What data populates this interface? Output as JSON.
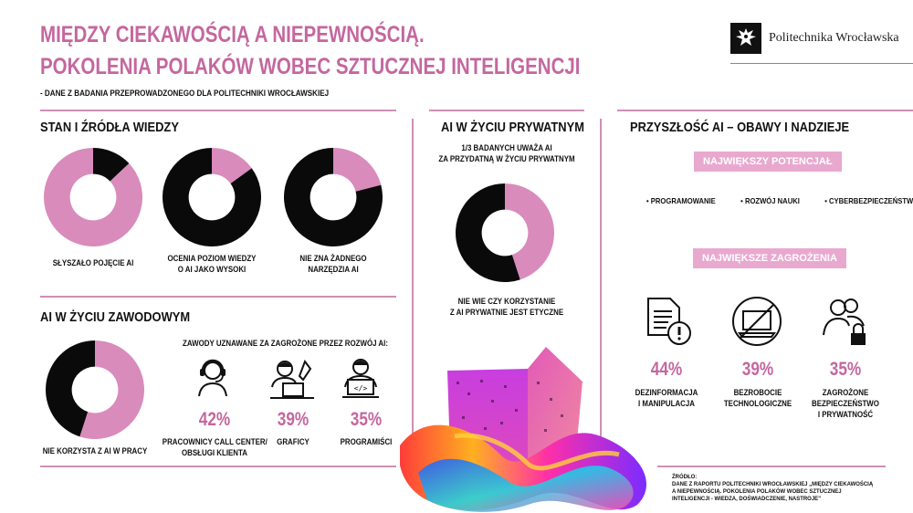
{
  "header": {
    "title_line1": "MIĘDZY CIEKAWOŚCIĄ A NIEPEWNOŚCIĄ.",
    "title_line2": "POKOLENIA POLAKÓW WOBEC SZTUCZNEJ INTELIGENCJI",
    "subtitle": "- DANE Z BADANIA PRZEPROWADZONEGO DLA POLITECHNIKI WROCŁAWSKIEJ",
    "logo_text": "Politechnika Wrocławska"
  },
  "colors": {
    "accent": "#c4679f",
    "donut_pink": "#d98bbc",
    "donut_black": "#0a0a0a",
    "pill": "#e9a9cf"
  },
  "knowledge": {
    "title": "STAN I ŹRÓDŁA WIEDZY",
    "donuts": [
      {
        "value": 87,
        "label": "87%",
        "caption_l1": "SŁYSZAŁO POJĘCIE AI",
        "caption_l2": ""
      },
      {
        "value": 15,
        "label": "15%",
        "caption_l1": "OCENIA POZIOM WIEDZY",
        "caption_l2": "O AI JAKO WYSOKI"
      },
      {
        "value": 21,
        "label": "21%",
        "caption_l1": "NIE ZNA ŻADNEGO",
        "caption_l2": "NARZĘDZIA AI"
      }
    ]
  },
  "work": {
    "title": "AI W ŻYCIU ZAWODOWYM",
    "donut": {
      "value": 55,
      "label": "55%",
      "caption": "NIE KORZYSTA Z AI W PRACY"
    },
    "jobs_header": "ZAWODY UZNAWANE ZA ZAGROŻONE PRZEZ ROZWÓJ AI:",
    "jobs": [
      {
        "icon": "headset-operator-icon",
        "pct": "42%",
        "label_l1": "PRACOWNICY CALL CENTER/",
        "label_l2": "OBSŁUGI KLIENTA"
      },
      {
        "icon": "graphic-designer-icon",
        "pct": "39%",
        "label_l1": "GRAFICY",
        "label_l2": ""
      },
      {
        "icon": "programmer-icon",
        "pct": "35%",
        "label_l1": "PROGRAMIŚCI",
        "label_l2": ""
      }
    ]
  },
  "private": {
    "title": "AI W ŻYCIU PRYWATNYM",
    "intro_l1": "1/3 BADANYCH UWAŻA AI",
    "intro_l2": "ZA PRZYDATNĄ W ŻYCIU PRYWATNYM",
    "donut": {
      "value": 45,
      "label": "45%"
    },
    "caption_l1": "NIE WIE CZY KORZYSTANIE",
    "caption_l2": "Z AI PRYWATNIE JEST ETYCZNE"
  },
  "future": {
    "title": "PRZYSZŁOŚĆ AI – OBAWY I NADZIEJE",
    "potential_label": "NAJWIĘKSZY POTENCJAŁ",
    "potential_items": [
      "PROGRAMOWANIE",
      "ROZWÓJ NAUKI",
      "CYBERBEZPIECZEŃSTWO"
    ],
    "threats_label": "NAJWIĘKSZE ZAGROŻENIA",
    "threats": [
      {
        "icon": "document-warning-icon",
        "pct": "44%",
        "label_l1": "DEZINFORMACJA",
        "label_l2": "I MANIPULACJA",
        "label_l3": ""
      },
      {
        "icon": "crossed-laptop-icon",
        "pct": "39%",
        "label_l1": "BEZROBOCIE",
        "label_l2": "TECHNOLOGICZNE",
        "label_l3": ""
      },
      {
        "icon": "people-lock-icon",
        "pct": "35%",
        "label_l1": "ZAGROŻONE",
        "label_l2": "BEZPIECZEŃSTWO",
        "label_l3": "I PRYWATNOŚĆ"
      }
    ]
  },
  "source": {
    "label": "ŹRÓDŁO:",
    "text": "DANE Z RAPORTU POLITECHNIKI WROCŁAWSKIEJ „MIĘDZY CIEKAWOŚCIĄ A NIEPEWNOŚCIĄ. POKOLENIA POLAKÓW WOBEC SZTUCZNEJ INTELIGENCJI - WIEDZA, DOŚWIADCZENIE, NASTROJE”"
  }
}
